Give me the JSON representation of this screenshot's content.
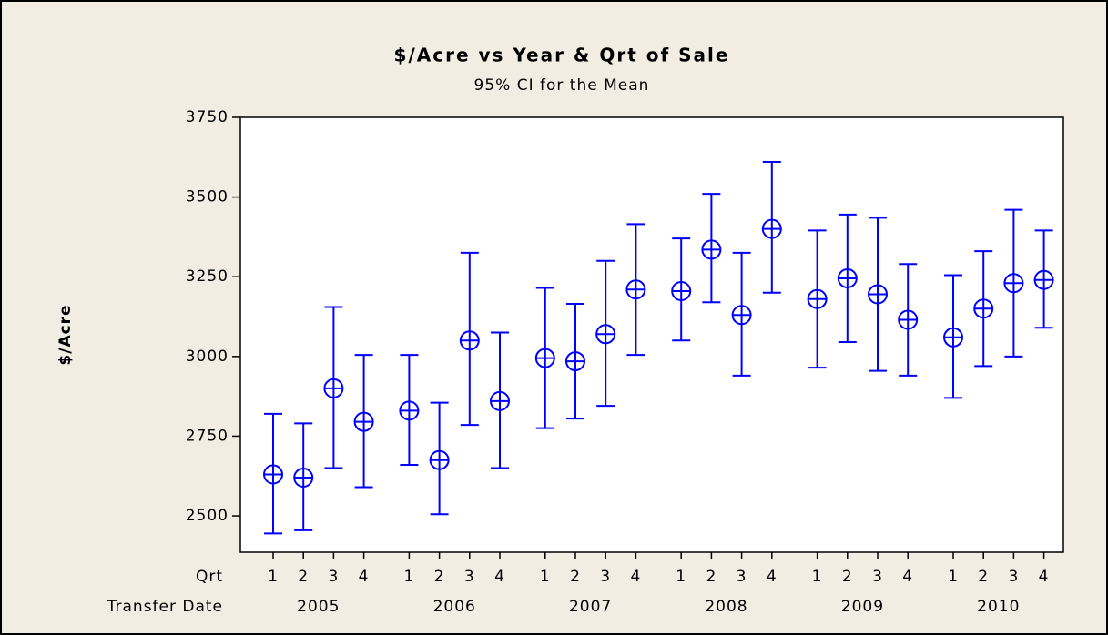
{
  "chart_data": {
    "type": "interval",
    "title": "$/Acre vs Year & Qrt of Sale",
    "subtitle": "95% CI for the Mean",
    "y_label": "$/Acre",
    "x_label_inner": "Qrt",
    "x_label_outer": "Transfer Date",
    "categories": [
      "1",
      "2",
      "3",
      "4",
      "1",
      "2",
      "3",
      "4",
      "1",
      "2",
      "3",
      "4",
      "1",
      "2",
      "3",
      "4",
      "1",
      "2",
      "3",
      "4",
      "1",
      "2",
      "3",
      "4"
    ],
    "groups": [
      "2005",
      "2006",
      "2007",
      "2008",
      "2009",
      "2010"
    ],
    "values": [
      2630,
      2620,
      2900,
      2795,
      2830,
      2675,
      3050,
      2860,
      2995,
      2985,
      3070,
      3210,
      3205,
      3335,
      3130,
      3400,
      3180,
      3245,
      3195,
      3115,
      3060,
      3150,
      3230,
      3240
    ],
    "lower": [
      2445,
      2455,
      2650,
      2590,
      2660,
      2505,
      2785,
      2650,
      2775,
      2805,
      2845,
      3005,
      3050,
      3170,
      2940,
      3200,
      2965,
      3045,
      2955,
      2940,
      2870,
      2970,
      3000,
      3090
    ],
    "upper": [
      2820,
      2790,
      3155,
      3005,
      3005,
      2855,
      3325,
      3075,
      3215,
      3165,
      3300,
      3415,
      3370,
      3510,
      3325,
      3610,
      3395,
      3445,
      3435,
      3290,
      3255,
      3330,
      3460,
      3395
    ],
    "color": "#0000ff",
    "ylim": [
      2386,
      3750
    ],
    "yticks": [
      2500,
      2750,
      3000,
      3250,
      3500,
      3750
    ]
  }
}
